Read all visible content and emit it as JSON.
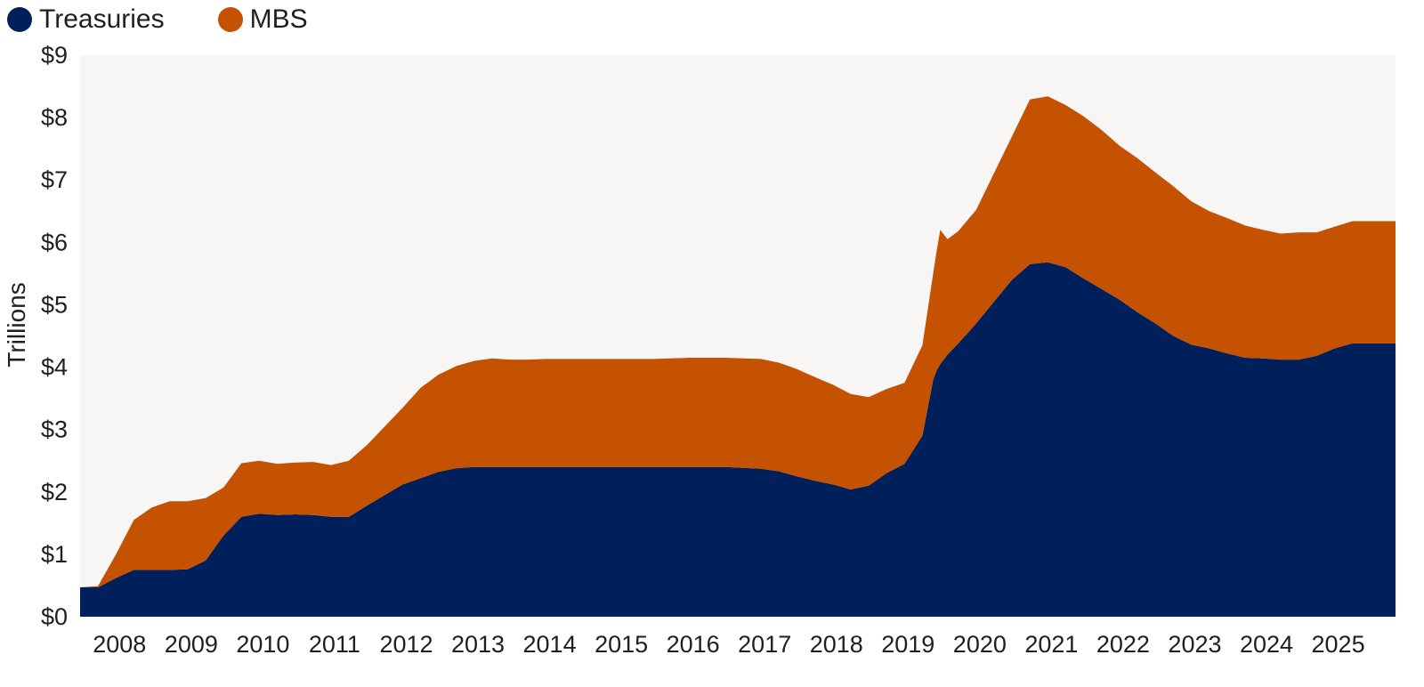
{
  "chart_data": {
    "type": "area",
    "stacked": true,
    "ylabel": "Trillions",
    "xlabel": "",
    "title": "",
    "ylim": [
      0,
      9
    ],
    "xlim": [
      2007.5,
      2025.85
    ],
    "y_ticks": [
      {
        "value": 0,
        "label": "$0"
      },
      {
        "value": 1,
        "label": "$1"
      },
      {
        "value": 2,
        "label": "$2"
      },
      {
        "value": 3,
        "label": "$3"
      },
      {
        "value": 4,
        "label": "$4"
      },
      {
        "value": 5,
        "label": "$5"
      },
      {
        "value": 6,
        "label": "$6"
      },
      {
        "value": 7,
        "label": "$7"
      },
      {
        "value": 8,
        "label": "$8"
      },
      {
        "value": 9,
        "label": "$9"
      }
    ],
    "x_ticks": [
      {
        "value": 2008,
        "label": "2008"
      },
      {
        "value": 2009,
        "label": "2009"
      },
      {
        "value": 2010,
        "label": "2010"
      },
      {
        "value": 2011,
        "label": "2011"
      },
      {
        "value": 2012,
        "label": "2012"
      },
      {
        "value": 2013,
        "label": "2013"
      },
      {
        "value": 2014,
        "label": "2014"
      },
      {
        "value": 2015,
        "label": "2015"
      },
      {
        "value": 2016,
        "label": "2016"
      },
      {
        "value": 2017,
        "label": "2017"
      },
      {
        "value": 2018,
        "label": "2018"
      },
      {
        "value": 2019,
        "label": "2019"
      },
      {
        "value": 2020,
        "label": "2020"
      },
      {
        "value": 2021,
        "label": "2021"
      },
      {
        "value": 2022,
        "label": "2022"
      },
      {
        "value": 2023,
        "label": "2023"
      },
      {
        "value": 2024,
        "label": "2024"
      },
      {
        "value": 2025,
        "label": "2025"
      }
    ],
    "legend": {
      "placement": "top-left"
    },
    "grid": false,
    "plot_background": "#f7f6f5",
    "x": [
      2007.5,
      2007.75,
      2008.0,
      2008.25,
      2008.5,
      2008.75,
      2009.0,
      2009.25,
      2009.5,
      2009.75,
      2010.0,
      2010.25,
      2010.5,
      2010.75,
      2011.0,
      2011.25,
      2011.5,
      2011.75,
      2012.0,
      2012.25,
      2012.5,
      2012.75,
      2013.0,
      2013.25,
      2013.5,
      2013.75,
      2014.0,
      2014.5,
      2015.0,
      2015.5,
      2016.0,
      2016.5,
      2017.0,
      2017.25,
      2017.5,
      2017.75,
      2018.0,
      2018.25,
      2018.5,
      2018.75,
      2019.0,
      2019.25,
      2019.4,
      2019.45,
      2019.5,
      2019.6,
      2019.75,
      2020.0,
      2020.25,
      2020.5,
      2020.75,
      2021.0,
      2021.25,
      2021.5,
      2021.75,
      2022.0,
      2022.25,
      2022.5,
      2022.75,
      2023.0,
      2023.25,
      2023.5,
      2023.75,
      2024.0,
      2024.25,
      2024.5,
      2024.75,
      2025.0,
      2025.25,
      2025.5,
      2025.75,
      2025.85
    ],
    "series": [
      {
        "name": "Treasuries",
        "color": "#00205b",
        "values": [
          0.47,
          0.47,
          0.62,
          0.75,
          0.75,
          0.75,
          0.76,
          0.9,
          1.3,
          1.6,
          1.65,
          1.63,
          1.64,
          1.63,
          1.6,
          1.6,
          1.78,
          1.95,
          2.12,
          2.22,
          2.32,
          2.38,
          2.4,
          2.4,
          2.4,
          2.4,
          2.4,
          2.4,
          2.4,
          2.4,
          2.4,
          2.4,
          2.37,
          2.33,
          2.25,
          2.18,
          2.12,
          2.04,
          2.1,
          2.3,
          2.45,
          2.9,
          3.8,
          3.95,
          4.05,
          4.2,
          4.38,
          4.7,
          5.05,
          5.4,
          5.65,
          5.68,
          5.6,
          5.42,
          5.25,
          5.08,
          4.88,
          4.7,
          4.5,
          4.36,
          4.3,
          4.22,
          4.15,
          4.14,
          4.12,
          4.12,
          4.18,
          4.3,
          4.38,
          4.38,
          4.38,
          4.38
        ]
      },
      {
        "name": "MBS",
        "color": "#c55200",
        "values": [
          0.0,
          0.02,
          0.38,
          0.8,
          1.0,
          1.1,
          1.09,
          1.0,
          0.77,
          0.86,
          0.85,
          0.82,
          0.83,
          0.85,
          0.83,
          0.9,
          0.97,
          1.1,
          1.23,
          1.45,
          1.56,
          1.64,
          1.7,
          1.74,
          1.72,
          1.72,
          1.73,
          1.73,
          1.73,
          1.73,
          1.75,
          1.75,
          1.76,
          1.74,
          1.72,
          1.66,
          1.6,
          1.53,
          1.42,
          1.35,
          1.3,
          1.45,
          1.7,
          1.92,
          2.15,
          1.85,
          1.8,
          1.82,
          2.06,
          2.3,
          2.64,
          2.66,
          2.6,
          2.6,
          2.55,
          2.47,
          2.47,
          2.42,
          2.4,
          2.3,
          2.2,
          2.17,
          2.12,
          2.06,
          2.02,
          2.04,
          1.98,
          1.95,
          1.96,
          1.96,
          1.96,
          1.96
        ]
      }
    ]
  }
}
